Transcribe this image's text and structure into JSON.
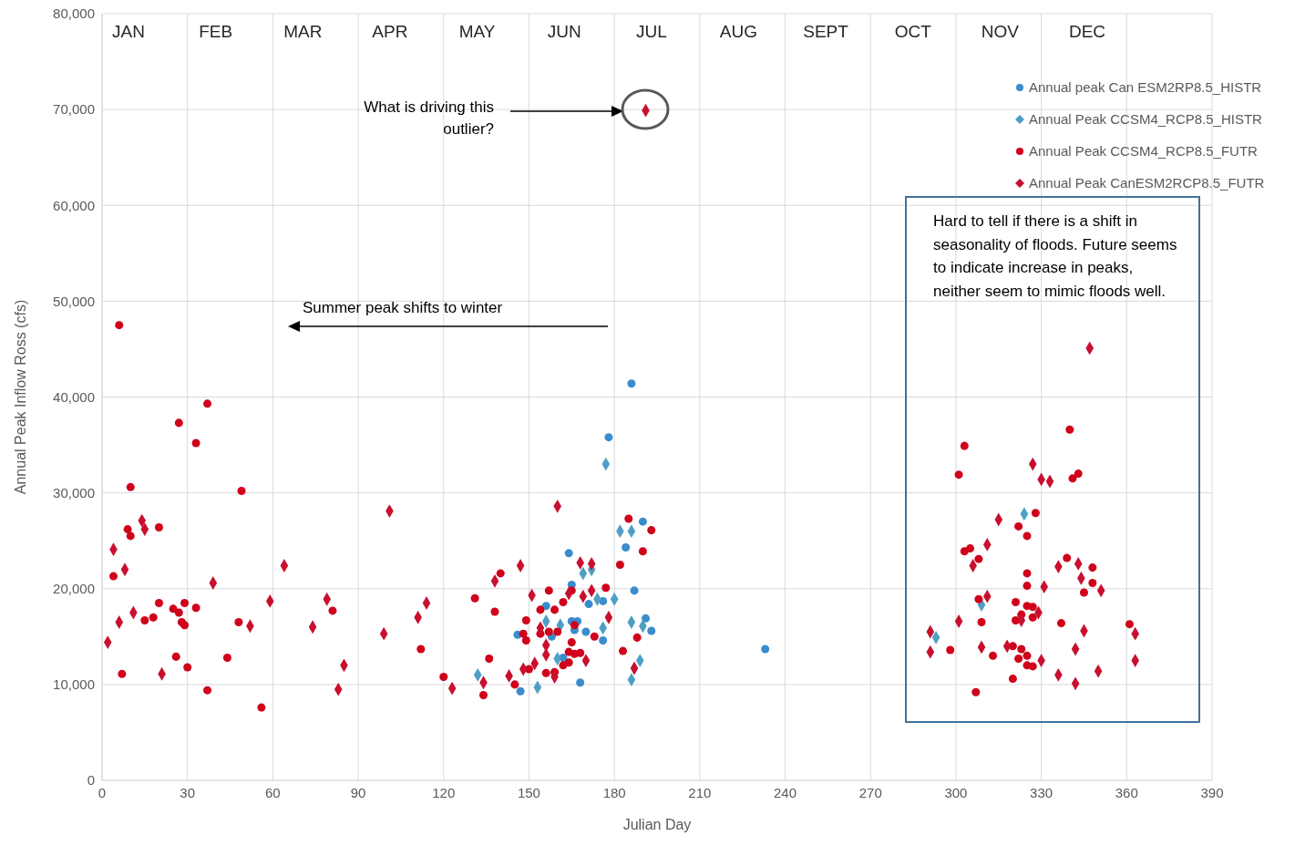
{
  "chart_data": {
    "type": "scatter",
    "xlabel": "Julian Day",
    "ylabel": "Annual Peak Inflow Ross (cfs)",
    "xlim": [
      0,
      390
    ],
    "xticks": [
      0,
      30,
      60,
      90,
      120,
      150,
      180,
      210,
      240,
      270,
      300,
      330,
      360,
      390
    ],
    "ylim": [
      0,
      80000
    ],
    "yticks": [
      {
        "value": 0,
        "label": "0"
      },
      {
        "value": 10000,
        "label": "10,000"
      },
      {
        "value": 20000,
        "label": "20,000"
      },
      {
        "value": 30000,
        "label": "30,000"
      },
      {
        "value": 40000,
        "label": "40,000"
      },
      {
        "value": 50000,
        "label": "50,000"
      },
      {
        "value": 60000,
        "label": "60,000"
      },
      {
        "value": 70000,
        "label": "70,000"
      },
      {
        "value": 80000,
        "label": "80,000"
      }
    ],
    "grid": true,
    "legend": "top right",
    "series": [
      {
        "name": "Annual peak Can ESM2RP8.5_HISTR",
        "color": "#3a8ccc",
        "marker": "circle",
        "x": [
          186,
          178,
          190,
          184,
          164,
          165,
          187,
          171,
          176,
          156,
          165,
          167,
          166,
          170,
          191,
          193,
          176,
          146,
          158,
          162,
          168,
          147,
          233
        ],
        "values": [
          41400,
          35800,
          27000,
          24300,
          23700,
          20400,
          19800,
          18400,
          18700,
          18200,
          16600,
          16600,
          15700,
          15500,
          16900,
          15600,
          14600,
          15200,
          15000,
          12800,
          10200,
          9300,
          13700
        ]
      },
      {
        "name": "Annual Peak CCSM4_RCP8.5_HISTR",
        "color": "#4f9fc4",
        "marker": "diamond",
        "x": [
          177,
          182,
          186,
          169,
          172,
          174,
          180,
          156,
          161,
          176,
          186,
          190,
          160,
          189,
          132,
          186,
          153,
          324,
          309,
          293
        ],
        "values": [
          33000,
          26000,
          26000,
          21600,
          22000,
          18900,
          18900,
          16600,
          16200,
          15900,
          16500,
          16100,
          12700,
          12500,
          11000,
          10500,
          9700,
          27800,
          18300,
          14900
        ]
      },
      {
        "name": "Annual Peak CCSM4_RCP8.5_FUTR",
        "color": "#d0021b",
        "marker": "circle",
        "x": [
          6,
          37,
          27,
          33,
          10,
          49,
          9,
          20,
          10,
          4,
          20,
          15,
          18,
          25,
          27,
          29,
          33,
          28,
          29,
          48,
          81,
          26,
          44,
          30,
          7,
          37,
          56,
          185,
          193,
          190,
          182,
          140,
          157,
          165,
          177,
          162,
          131,
          154,
          159,
          138,
          149,
          166,
          157,
          160,
          154,
          188,
          173,
          148,
          149,
          165,
          112,
          164,
          166,
          168,
          183,
          136,
          162,
          164,
          150,
          156,
          159,
          120,
          145,
          134,
          340,
          303,
          301,
          341,
          343,
          328,
          322,
          325,
          303,
          305,
          308,
          339,
          348,
          325,
          348,
          325,
          345,
          308,
          321,
          325,
          327,
          323,
          327,
          321,
          309,
          337,
          361,
          298,
          320,
          313,
          323,
          322,
          325,
          325,
          327,
          320,
          307
        ],
        "values": [
          47500,
          39300,
          37300,
          35200,
          30600,
          30200,
          26200,
          26400,
          25500,
          21300,
          18500,
          16700,
          17000,
          17900,
          17500,
          18500,
          18000,
          16500,
          16200,
          16500,
          17700,
          12900,
          12800,
          11800,
          11100,
          9400,
          7600,
          27300,
          26100,
          23900,
          22500,
          21600,
          19800,
          19800,
          20100,
          18600,
          19000,
          17800,
          17800,
          17600,
          16700,
          16200,
          15500,
          15500,
          15300,
          14900,
          15000,
          15300,
          14600,
          14400,
          13700,
          13400,
          13200,
          13300,
          13500,
          12700,
          12000,
          12300,
          11600,
          11200,
          11300,
          10800,
          10000,
          8900,
          36600,
          34900,
          31900,
          31500,
          32000,
          27900,
          26500,
          25500,
          23900,
          24200,
          23100,
          23200,
          22200,
          21600,
          20600,
          20300,
          19600,
          18900,
          18600,
          18200,
          18100,
          17300,
          17000,
          16700,
          16500,
          16400,
          16300,
          13600,
          14000,
          13000,
          13700,
          12700,
          13000,
          12000,
          11900,
          10600,
          9200
        ]
      },
      {
        "name": "Annual Peak CanESM2RCP8.5_FUTR",
        "color": "#c8102e",
        "marker": "diamond",
        "x": [
          14,
          15,
          4,
          8,
          64,
          101,
          39,
          11,
          6,
          59,
          52,
          79,
          74,
          99,
          2,
          21,
          85,
          83,
          191,
          160,
          168,
          172,
          147,
          138,
          164,
          151,
          172,
          169,
          114,
          111,
          178,
          154,
          156,
          156,
          170,
          152,
          187,
          148,
          143,
          159,
          134,
          123,
          347,
          327,
          330,
          333,
          315,
          311,
          306,
          336,
          343,
          344,
          331,
          351,
          311,
          329,
          323,
          301,
          363,
          345,
          291,
          291,
          309,
          318,
          342,
          330,
          363,
          336,
          350,
          342
        ],
        "values": [
          27100,
          26200,
          24100,
          22000,
          22400,
          28100,
          20600,
          17500,
          16500,
          18700,
          16100,
          18900,
          16000,
          15300,
          14400,
          11100,
          12000,
          9500,
          69900,
          28600,
          22700,
          22600,
          22400,
          20800,
          19500,
          19300,
          19800,
          19200,
          18500,
          17000,
          17000,
          15900,
          14100,
          13100,
          12500,
          12200,
          11700,
          11600,
          10900,
          10800,
          10200,
          9600,
          45100,
          33000,
          31400,
          31200,
          27200,
          24600,
          22400,
          22300,
          22600,
          21100,
          20200,
          19800,
          19200,
          17500,
          16700,
          16600,
          15300,
          15600,
          15500,
          13400,
          13900,
          14000,
          13700,
          12500,
          12500,
          11000,
          11400,
          10100
        ]
      }
    ],
    "annotations": [
      "JAN",
      "FEB",
      "MAR",
      "APR",
      "MAY",
      "JUN",
      "JUL",
      "AUG",
      "SEPT",
      "OCT",
      "NOV",
      "DEC",
      "What is driving this outlier?",
      "Summer peak shifts to winter",
      "Hard to tell if there is a shift in seasonality of floods. Future seems to indicate increase in peaks, neither seem to mimic floods well."
    ]
  }
}
